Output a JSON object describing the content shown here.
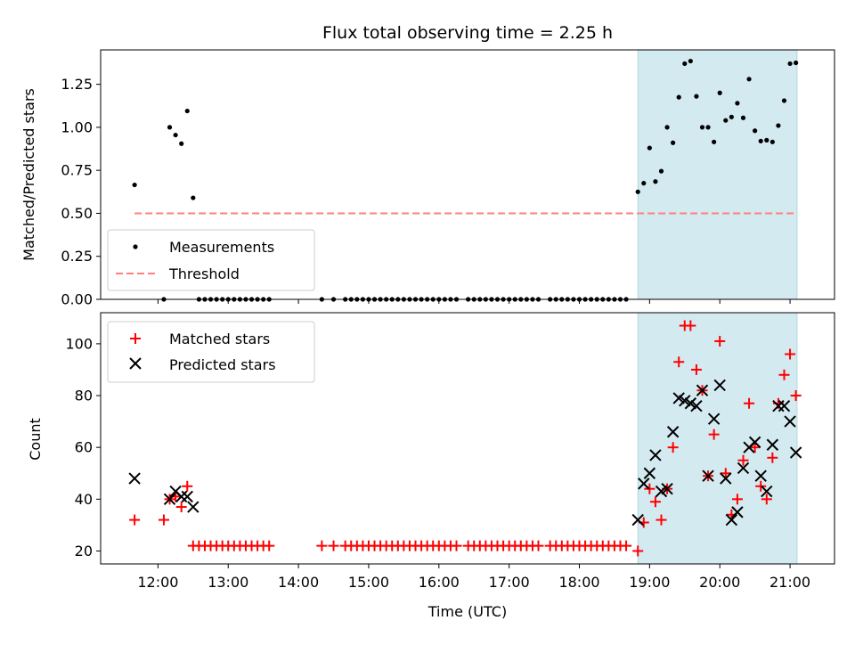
{
  "chart_data": {
    "type": "scatter",
    "title": "Flux total observing time = 2.25 h",
    "xlabel": "Time (UTC)",
    "x_ticks": [
      "12:00",
      "13:00",
      "14:00",
      "15:00",
      "16:00",
      "17:00",
      "18:00",
      "19:00",
      "20:00",
      "21:00"
    ],
    "highlight_span": [
      "18:50",
      "21:06"
    ],
    "highlight_color": "#d4eaf1",
    "top": {
      "ylabel": "Matched/Predicted stars",
      "ylim": [
        0,
        1.45
      ],
      "y_ticks": [
        "0.00",
        "0.25",
        "0.50",
        "0.75",
        "1.00",
        "1.25"
      ],
      "legend": [
        "Measurements",
        "Threshold"
      ],
      "legend_position": "lower-left",
      "threshold": 0.5,
      "threshold_range": [
        "11:40",
        "21:06"
      ],
      "measurements": [
        {
          "x": "11:40",
          "y": 0.665
        },
        {
          "x": "12:05",
          "y": 0.0
        },
        {
          "x": "12:10",
          "y": 1.0
        },
        {
          "x": "12:15",
          "y": 0.955
        },
        {
          "x": "12:20",
          "y": 0.905
        },
        {
          "x": "12:25",
          "y": 1.095
        },
        {
          "x": "12:30",
          "y": 0.59
        },
        {
          "x": "12:35",
          "y": 0.0
        },
        {
          "x": "12:40",
          "y": 0.0
        },
        {
          "x": "12:45",
          "y": 0.0
        },
        {
          "x": "12:50",
          "y": 0.0
        },
        {
          "x": "12:55",
          "y": 0.0
        },
        {
          "x": "13:00",
          "y": 0.0
        },
        {
          "x": "13:05",
          "y": 0.0
        },
        {
          "x": "13:10",
          "y": 0.0
        },
        {
          "x": "13:15",
          "y": 0.0
        },
        {
          "x": "13:20",
          "y": 0.0
        },
        {
          "x": "13:25",
          "y": 0.0
        },
        {
          "x": "13:30",
          "y": 0.0
        },
        {
          "x": "13:35",
          "y": 0.0
        },
        {
          "x": "14:20",
          "y": 0.0
        },
        {
          "x": "14:30",
          "y": 0.0
        },
        {
          "x": "14:40",
          "y": 0.0
        },
        {
          "x": "14:45",
          "y": 0.0
        },
        {
          "x": "14:50",
          "y": 0.0
        },
        {
          "x": "14:55",
          "y": 0.0
        },
        {
          "x": "15:00",
          "y": 0.0
        },
        {
          "x": "15:05",
          "y": 0.0
        },
        {
          "x": "15:10",
          "y": 0.0
        },
        {
          "x": "15:15",
          "y": 0.0
        },
        {
          "x": "15:20",
          "y": 0.0
        },
        {
          "x": "15:25",
          "y": 0.0
        },
        {
          "x": "15:30",
          "y": 0.0
        },
        {
          "x": "15:35",
          "y": 0.0
        },
        {
          "x": "15:40",
          "y": 0.0
        },
        {
          "x": "15:45",
          "y": 0.0
        },
        {
          "x": "15:50",
          "y": 0.0
        },
        {
          "x": "15:55",
          "y": 0.0
        },
        {
          "x": "16:00",
          "y": 0.0
        },
        {
          "x": "16:05",
          "y": 0.0
        },
        {
          "x": "16:10",
          "y": 0.0
        },
        {
          "x": "16:15",
          "y": 0.0
        },
        {
          "x": "16:25",
          "y": 0.0
        },
        {
          "x": "16:30",
          "y": 0.0
        },
        {
          "x": "16:35",
          "y": 0.0
        },
        {
          "x": "16:40",
          "y": 0.0
        },
        {
          "x": "16:45",
          "y": 0.0
        },
        {
          "x": "16:50",
          "y": 0.0
        },
        {
          "x": "16:55",
          "y": 0.0
        },
        {
          "x": "17:00",
          "y": 0.0
        },
        {
          "x": "17:05",
          "y": 0.0
        },
        {
          "x": "17:10",
          "y": 0.0
        },
        {
          "x": "17:15",
          "y": 0.0
        },
        {
          "x": "17:20",
          "y": 0.0
        },
        {
          "x": "17:25",
          "y": 0.0
        },
        {
          "x": "17:35",
          "y": 0.0
        },
        {
          "x": "17:40",
          "y": 0.0
        },
        {
          "x": "17:45",
          "y": 0.0
        },
        {
          "x": "17:50",
          "y": 0.0
        },
        {
          "x": "17:55",
          "y": 0.0
        },
        {
          "x": "18:00",
          "y": 0.0
        },
        {
          "x": "18:05",
          "y": 0.0
        },
        {
          "x": "18:10",
          "y": 0.0
        },
        {
          "x": "18:15",
          "y": 0.0
        },
        {
          "x": "18:20",
          "y": 0.0
        },
        {
          "x": "18:25",
          "y": 0.0
        },
        {
          "x": "18:30",
          "y": 0.0
        },
        {
          "x": "18:35",
          "y": 0.0
        },
        {
          "x": "18:40",
          "y": 0.0
        },
        {
          "x": "18:50",
          "y": 0.625
        },
        {
          "x": "18:55",
          "y": 0.675
        },
        {
          "x": "19:00",
          "y": 0.88
        },
        {
          "x": "19:05",
          "y": 0.685
        },
        {
          "x": "19:10",
          "y": 0.745
        },
        {
          "x": "19:15",
          "y": 1.0
        },
        {
          "x": "19:20",
          "y": 0.91
        },
        {
          "x": "19:25",
          "y": 1.175
        },
        {
          "x": "19:30",
          "y": 1.37
        },
        {
          "x": "19:35",
          "y": 1.385
        },
        {
          "x": "19:40",
          "y": 1.18
        },
        {
          "x": "19:45",
          "y": 1.0
        },
        {
          "x": "19:50",
          "y": 1.0
        },
        {
          "x": "19:55",
          "y": 0.915
        },
        {
          "x": "20:00",
          "y": 1.2
        },
        {
          "x": "20:05",
          "y": 1.04
        },
        {
          "x": "20:10",
          "y": 1.06
        },
        {
          "x": "20:15",
          "y": 1.14
        },
        {
          "x": "20:20",
          "y": 1.055
        },
        {
          "x": "20:25",
          "y": 1.28
        },
        {
          "x": "20:30",
          "y": 0.98
        },
        {
          "x": "20:35",
          "y": 0.92
        },
        {
          "x": "20:40",
          "y": 0.925
        },
        {
          "x": "20:45",
          "y": 0.915
        },
        {
          "x": "20:50",
          "y": 1.01
        },
        {
          "x": "20:55",
          "y": 1.155
        },
        {
          "x": "21:00",
          "y": 1.37
        },
        {
          "x": "21:05",
          "y": 1.375
        }
      ]
    },
    "bottom": {
      "ylabel": "Count",
      "ylim": [
        15,
        112
      ],
      "y_ticks": [
        "20",
        "40",
        "60",
        "80",
        "100"
      ],
      "legend": [
        "Matched stars",
        "Predicted stars"
      ],
      "legend_position": "upper-left",
      "matched_color": "#ff0000",
      "predicted_color": "#000000",
      "matched": [
        {
          "x": "11:40",
          "y": 32
        },
        {
          "x": "12:05",
          "y": 32
        },
        {
          "x": "12:10",
          "y": 40
        },
        {
          "x": "12:15",
          "y": 41
        },
        {
          "x": "12:20",
          "y": 37
        },
        {
          "x": "12:25",
          "y": 45
        },
        {
          "x": "12:30",
          "y": 22
        },
        {
          "x": "12:35",
          "y": 22
        },
        {
          "x": "12:40",
          "y": 22
        },
        {
          "x": "12:45",
          "y": 22
        },
        {
          "x": "12:50",
          "y": 22
        },
        {
          "x": "12:55",
          "y": 22
        },
        {
          "x": "13:00",
          "y": 22
        },
        {
          "x": "13:05",
          "y": 22
        },
        {
          "x": "13:10",
          "y": 22
        },
        {
          "x": "13:15",
          "y": 22
        },
        {
          "x": "13:20",
          "y": 22
        },
        {
          "x": "13:25",
          "y": 22
        },
        {
          "x": "13:30",
          "y": 22
        },
        {
          "x": "13:35",
          "y": 22
        },
        {
          "x": "14:20",
          "y": 22
        },
        {
          "x": "14:30",
          "y": 22
        },
        {
          "x": "14:40",
          "y": 22
        },
        {
          "x": "14:45",
          "y": 22
        },
        {
          "x": "14:50",
          "y": 22
        },
        {
          "x": "14:55",
          "y": 22
        },
        {
          "x": "15:00",
          "y": 22
        },
        {
          "x": "15:05",
          "y": 22
        },
        {
          "x": "15:10",
          "y": 22
        },
        {
          "x": "15:15",
          "y": 22
        },
        {
          "x": "15:20",
          "y": 22
        },
        {
          "x": "15:25",
          "y": 22
        },
        {
          "x": "15:30",
          "y": 22
        },
        {
          "x": "15:35",
          "y": 22
        },
        {
          "x": "15:40",
          "y": 22
        },
        {
          "x": "15:45",
          "y": 22
        },
        {
          "x": "15:50",
          "y": 22
        },
        {
          "x": "15:55",
          "y": 22
        },
        {
          "x": "16:00",
          "y": 22
        },
        {
          "x": "16:05",
          "y": 22
        },
        {
          "x": "16:10",
          "y": 22
        },
        {
          "x": "16:15",
          "y": 22
        },
        {
          "x": "16:25",
          "y": 22
        },
        {
          "x": "16:30",
          "y": 22
        },
        {
          "x": "16:35",
          "y": 22
        },
        {
          "x": "16:40",
          "y": 22
        },
        {
          "x": "16:45",
          "y": 22
        },
        {
          "x": "16:50",
          "y": 22
        },
        {
          "x": "16:55",
          "y": 22
        },
        {
          "x": "17:00",
          "y": 22
        },
        {
          "x": "17:05",
          "y": 22
        },
        {
          "x": "17:10",
          "y": 22
        },
        {
          "x": "17:15",
          "y": 22
        },
        {
          "x": "17:20",
          "y": 22
        },
        {
          "x": "17:25",
          "y": 22
        },
        {
          "x": "17:35",
          "y": 22
        },
        {
          "x": "17:40",
          "y": 22
        },
        {
          "x": "17:45",
          "y": 22
        },
        {
          "x": "17:50",
          "y": 22
        },
        {
          "x": "17:55",
          "y": 22
        },
        {
          "x": "18:00",
          "y": 22
        },
        {
          "x": "18:05",
          "y": 22
        },
        {
          "x": "18:10",
          "y": 22
        },
        {
          "x": "18:15",
          "y": 22
        },
        {
          "x": "18:20",
          "y": 22
        },
        {
          "x": "18:25",
          "y": 22
        },
        {
          "x": "18:30",
          "y": 22
        },
        {
          "x": "18:35",
          "y": 22
        },
        {
          "x": "18:40",
          "y": 22
        },
        {
          "x": "18:50",
          "y": 20
        },
        {
          "x": "18:55",
          "y": 31
        },
        {
          "x": "19:00",
          "y": 44
        },
        {
          "x": "19:05",
          "y": 39
        },
        {
          "x": "19:10",
          "y": 32
        },
        {
          "x": "19:15",
          "y": 44
        },
        {
          "x": "19:20",
          "y": 60
        },
        {
          "x": "19:25",
          "y": 93
        },
        {
          "x": "19:30",
          "y": 107
        },
        {
          "x": "19:35",
          "y": 107
        },
        {
          "x": "19:40",
          "y": 90
        },
        {
          "x": "19:45",
          "y": 82
        },
        {
          "x": "19:50",
          "y": 49
        },
        {
          "x": "19:55",
          "y": 65
        },
        {
          "x": "20:00",
          "y": 101
        },
        {
          "x": "20:05",
          "y": 50
        },
        {
          "x": "20:10",
          "y": 34
        },
        {
          "x": "20:15",
          "y": 40
        },
        {
          "x": "20:20",
          "y": 55
        },
        {
          "x": "20:25",
          "y": 77
        },
        {
          "x": "20:30",
          "y": 60
        },
        {
          "x": "20:35",
          "y": 45
        },
        {
          "x": "20:40",
          "y": 40
        },
        {
          "x": "20:45",
          "y": 56
        },
        {
          "x": "20:50",
          "y": 77
        },
        {
          "x": "20:55",
          "y": 88
        },
        {
          "x": "21:00",
          "y": 96
        },
        {
          "x": "21:05",
          "y": 80
        }
      ],
      "predicted": [
        {
          "x": "11:40",
          "y": 48
        },
        {
          "x": "12:10",
          "y": 40
        },
        {
          "x": "12:15",
          "y": 43
        },
        {
          "x": "12:20",
          "y": 41
        },
        {
          "x": "12:25",
          "y": 41
        },
        {
          "x": "12:30",
          "y": 37
        },
        {
          "x": "18:50",
          "y": 32
        },
        {
          "x": "18:55",
          "y": 46
        },
        {
          "x": "19:00",
          "y": 50
        },
        {
          "x": "19:05",
          "y": 57
        },
        {
          "x": "19:10",
          "y": 43
        },
        {
          "x": "19:15",
          "y": 44
        },
        {
          "x": "19:20",
          "y": 66
        },
        {
          "x": "19:25",
          "y": 79
        },
        {
          "x": "19:30",
          "y": 78
        },
        {
          "x": "19:35",
          "y": 77
        },
        {
          "x": "19:40",
          "y": 76
        },
        {
          "x": "19:45",
          "y": 82
        },
        {
          "x": "19:50",
          "y": 49
        },
        {
          "x": "19:55",
          "y": 71
        },
        {
          "x": "20:00",
          "y": 84
        },
        {
          "x": "20:05",
          "y": 48
        },
        {
          "x": "20:10",
          "y": 32
        },
        {
          "x": "20:15",
          "y": 35
        },
        {
          "x": "20:20",
          "y": 52
        },
        {
          "x": "20:25",
          "y": 60
        },
        {
          "x": "20:30",
          "y": 62
        },
        {
          "x": "20:35",
          "y": 49
        },
        {
          "x": "20:40",
          "y": 43
        },
        {
          "x": "20:45",
          "y": 61
        },
        {
          "x": "20:50",
          "y": 76
        },
        {
          "x": "20:55",
          "y": 76
        },
        {
          "x": "21:00",
          "y": 70
        },
        {
          "x": "21:05",
          "y": 58
        }
      ]
    }
  }
}
